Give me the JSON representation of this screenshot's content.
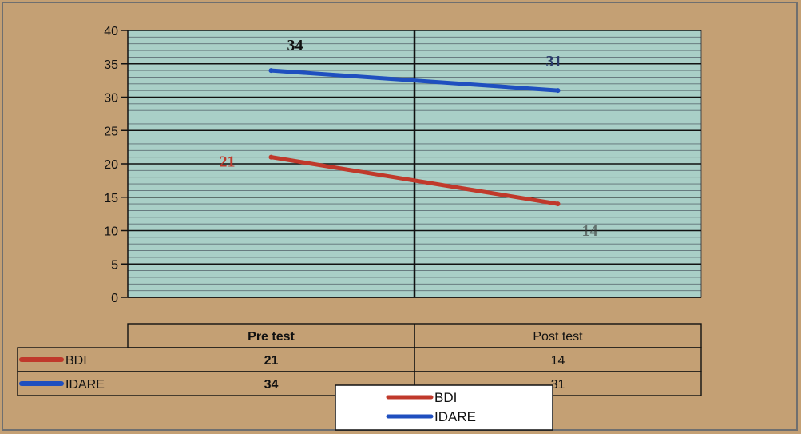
{
  "chart_data": {
    "type": "line",
    "categories": [
      "Pre test",
      "Post test"
    ],
    "series": [
      {
        "name": "BDI",
        "values": [
          21,
          14
        ],
        "color": "#c0392b"
      },
      {
        "name": "IDARE",
        "values": [
          34,
          31
        ],
        "color": "#1f4fbf"
      }
    ],
    "ylim": [
      0,
      40
    ],
    "yticks": [
      "0",
      "5",
      "10",
      "15",
      "20",
      "25",
      "30",
      "35",
      "40"
    ],
    "grid": true,
    "data_table": true,
    "legend": "bottom-center",
    "title": "",
    "xlabel": "",
    "ylabel": ""
  },
  "colors": {
    "background": "#c4a074",
    "plot_area": "#a9cfc7",
    "grid": "#111111"
  }
}
